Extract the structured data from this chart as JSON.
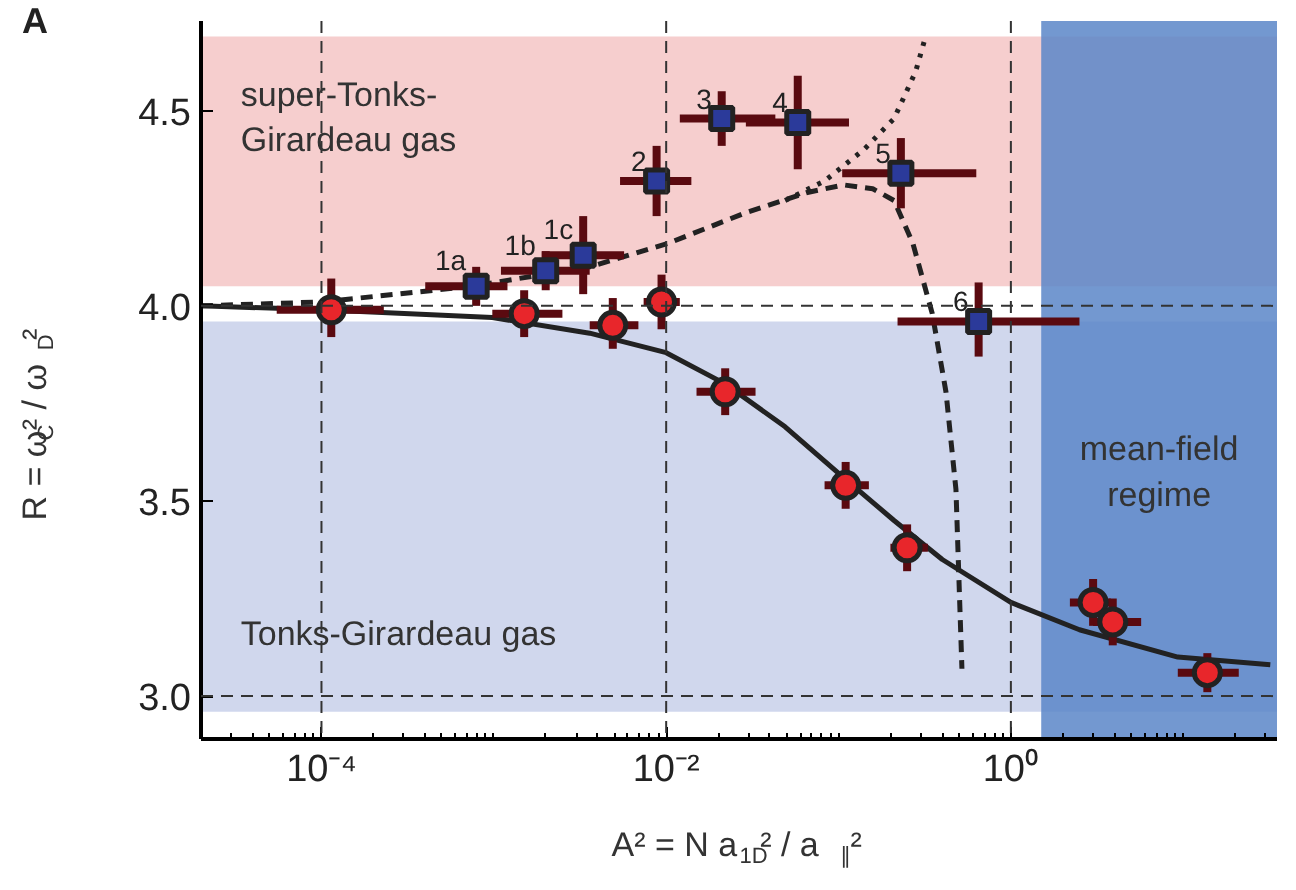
{
  "chart_data": {
    "type": "scatter",
    "title": "A",
    "xlabel": "A² = N a$_{1D}$² / a$_{∥}$²",
    "ylabel": "R = ω$_{C}$² / ω$_{D}$²",
    "log": "x",
    "grid": false,
    "xlim": [
      2e-05,
      35
    ],
    "ylim": [
      2.89,
      4.73
    ],
    "xticks": [
      {
        "value": 0.0001,
        "label": "10⁻⁴"
      },
      {
        "value": 0.01,
        "label": "10⁻²"
      },
      {
        "value": 1,
        "label": "10⁰"
      }
    ],
    "yticks": [
      {
        "value": 3,
        "label": "3.0"
      },
      {
        "value": 3.5,
        "label": "3.5"
      },
      {
        "value": 4,
        "label": "4.0"
      },
      {
        "value": 4.5,
        "label": "4.5"
      }
    ],
    "bands": [
      {
        "axis": "y",
        "from": 4.05,
        "to": 4.69,
        "label": "super-Tonks-Girardeau gas",
        "color": "#f4c6c6"
      },
      {
        "axis": "y",
        "from": 2.96,
        "to": 3.96,
        "label": "Tonks-Girardeau gas",
        "color": "#c8d0ea"
      },
      {
        "axis": "x",
        "from": 1.5,
        "to": 35,
        "label": "mean-field regime",
        "color": "#5b86c8"
      }
    ],
    "ref_lines": [
      {
        "axis": "y",
        "value": 4.0,
        "line_style": "dashed"
      },
      {
        "axis": "y",
        "value": 3.0,
        "line_style": "dashed"
      },
      {
        "axis": "x",
        "value": 0.0001,
        "line_style": "dashed"
      },
      {
        "axis": "x",
        "value": 0.01,
        "line_style": "dashed"
      },
      {
        "axis": "x",
        "value": 1,
        "line_style": "dashed"
      }
    ],
    "annotations": [
      {
        "text": "1a",
        "x": 0.00079,
        "y": 4.05
      },
      {
        "text": "1b",
        "x": 0.002,
        "y": 4.09
      },
      {
        "text": "1c",
        "x": 0.0033,
        "y": 4.13
      },
      {
        "text": "2",
        "x": 0.0088,
        "y": 4.32
      },
      {
        "text": "3",
        "x": 0.021,
        "y": 4.48
      },
      {
        "text": "4",
        "x": 0.058,
        "y": 4.47
      },
      {
        "text": "5",
        "x": 0.23,
        "y": 4.34
      },
      {
        "text": "6",
        "x": 0.65,
        "y": 3.96
      }
    ],
    "series": [
      {
        "type": "line",
        "line_style": "solid",
        "color": "#222222",
        "x": [
          2e-05,
          0.0001,
          0.00098,
          0.0036,
          0.01,
          0.022,
          0.049,
          0.107,
          0.21,
          0.4,
          1,
          2.5,
          9.3,
          32
        ],
        "values": [
          4.0,
          3.99,
          3.97,
          3.93,
          3.88,
          3.8,
          3.69,
          3.56,
          3.45,
          3.35,
          3.24,
          3.17,
          3.1,
          3.08
        ]
      },
      {
        "type": "line",
        "line_style": "dashed",
        "color": "#222222",
        "x": [
          2e-05,
          0.0001,
          0.00074,
          0.0036,
          0.0102,
          0.0295,
          0.065,
          0.107,
          0.158,
          0.21,
          0.27,
          0.35,
          0.42,
          0.48,
          0.52
        ],
        "values": [
          4.0,
          4.01,
          4.05,
          4.1,
          4.16,
          4.24,
          4.29,
          4.31,
          4.3,
          4.27,
          4.16,
          3.98,
          3.78,
          3.53,
          3.07
        ]
      },
      {
        "type": "line",
        "line_style": "dotted",
        "color": "#222222",
        "x": [
          0.049,
          0.083,
          0.14,
          0.21,
          0.28,
          0.32
        ],
        "values": [
          4.27,
          4.32,
          4.4,
          4.48,
          4.6,
          4.69
        ]
      },
      {
        "marker": "circle",
        "color": "#e8262b",
        "x": [
          0.000114,
          0.0015,
          0.0049,
          0.0094,
          0.022,
          0.11,
          0.25,
          3.0,
          3.9,
          13.8
        ],
        "values": [
          3.99,
          3.98,
          3.95,
          4.01,
          3.78,
          3.54,
          3.38,
          3.24,
          3.19,
          3.06
        ],
        "errors": [
          [
            3.92,
            4.07
          ],
          [
            3.92,
            4.04
          ],
          [
            3.89,
            4.02
          ],
          [
            3.94,
            4.08
          ],
          [
            3.72,
            3.84
          ],
          [
            3.48,
            3.6
          ],
          [
            3.32,
            3.44
          ],
          [
            3.18,
            3.3
          ],
          [
            3.13,
            3.25
          ],
          [
            3.01,
            3.11
          ]
        ],
        "xerrors": [
          [
            5.5e-05,
            0.00023
          ],
          [
            0.00098,
            0.0025
          ],
          [
            0.0036,
            0.0069
          ],
          [
            0.0074,
            0.012
          ],
          [
            0.015,
            0.033
          ],
          [
            0.083,
            0.15
          ],
          [
            0.2,
            0.33
          ],
          [
            2.2,
            3.8
          ],
          [
            3.0,
            5.7
          ],
          [
            9.3,
            21
          ]
        ]
      },
      {
        "marker": "square",
        "color": "#2b3a9a",
        "x": [
          0.00079,
          0.002,
          0.0033,
          0.0088,
          0.021,
          0.058,
          0.23,
          0.65
        ],
        "values": [
          4.05,
          4.09,
          4.13,
          4.32,
          4.48,
          4.47,
          4.34,
          3.96
        ],
        "errors": [
          [
            4.0,
            4.1
          ],
          [
            4.04,
            4.14
          ],
          [
            4.03,
            4.23
          ],
          [
            4.23,
            4.41
          ],
          [
            4.41,
            4.55
          ],
          [
            4.35,
            4.59
          ],
          [
            4.25,
            4.43
          ],
          [
            3.87,
            4.06
          ]
        ],
        "xerrors": [
          [
            0.0004,
            0.0012
          ],
          [
            0.0011,
            0.0036
          ],
          [
            0.0019,
            0.0057
          ],
          [
            0.0054,
            0.014
          ],
          [
            0.012,
            0.043
          ],
          [
            0.029,
            0.115
          ],
          [
            0.105,
            0.63
          ],
          [
            0.22,
            2.5
          ]
        ]
      }
    ]
  }
}
